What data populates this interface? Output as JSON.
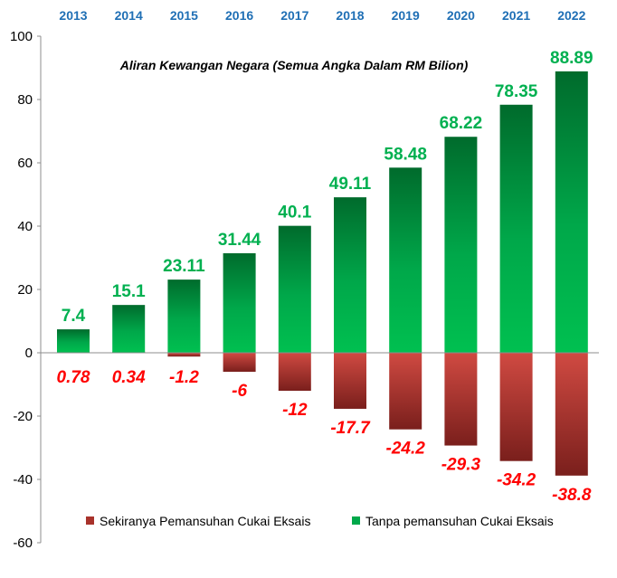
{
  "chart_data": {
    "type": "bar",
    "title": "Aliran Kewangan Negara (Semua Angka Dalam RM Bilion)",
    "categories": [
      "2013",
      "2014",
      "2015",
      "2016",
      "2017",
      "2018",
      "2019",
      "2020",
      "2021",
      "2022"
    ],
    "series": [
      {
        "name": "Tanpa pemansuhan Cukai Eksais",
        "values": [
          7.4,
          15.1,
          23.11,
          31.44,
          40.1,
          49.11,
          58.48,
          68.22,
          78.35,
          88.89
        ],
        "labels": [
          "7.4",
          "15.1",
          "23.11",
          "31.44",
          "40.1",
          "49.11",
          "58.48",
          "68.22",
          "78.35",
          "88.89"
        ],
        "color": "#00b050"
      },
      {
        "name": "Sekiranya Pemansuhan Cukai Eksais",
        "values": [
          0.78,
          0.34,
          -1.2,
          -6,
          -12,
          -17.7,
          -24.2,
          -29.3,
          -34.2,
          -38.8
        ],
        "labels": [
          "0.78",
          "0.34",
          "-1.2",
          "-6",
          "-12",
          "-17.7",
          "-24.2",
          "-29.3",
          "-34.2",
          "-38.8"
        ],
        "color": "#c0392b"
      }
    ],
    "ylim": [
      -60,
      100
    ],
    "yticks": [
      -60,
      -40,
      -20,
      0,
      20,
      40,
      60,
      80,
      100
    ],
    "grid": false,
    "legend_position": "bottom",
    "category_axis_position": "top",
    "label_colors": {
      "positive": "#00b050",
      "negative": "#ff0000",
      "years": "#1f6fb5"
    }
  }
}
